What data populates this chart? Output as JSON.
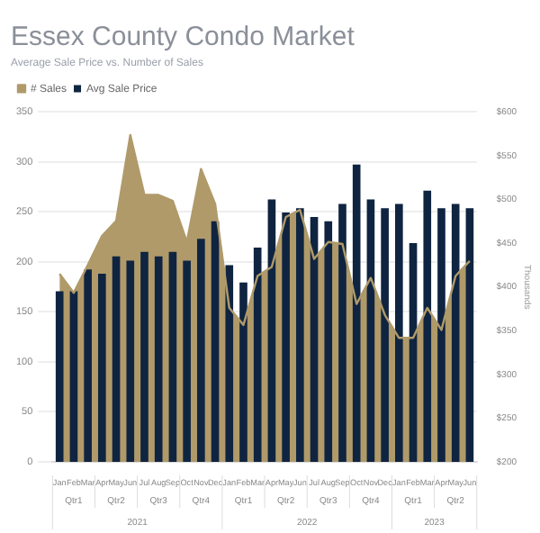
{
  "chart_data": {
    "type": "bar",
    "title": "Essex County Condo Market",
    "subtitle": "Average Sale Price vs. Number of Sales",
    "y2label": "Thousands",
    "categories": [
      "Jan",
      "Feb",
      "Mar",
      "Apr",
      "May",
      "Jun",
      "Jul",
      "Aug",
      "Sep",
      "Oct",
      "Nov",
      "Dec",
      "Jan",
      "Feb",
      "Mar",
      "Apr",
      "May",
      "Jun",
      "Jul",
      "Aug",
      "Sep",
      "Oct",
      "Nov",
      "Dec",
      "Jan",
      "Feb",
      "Mar",
      "Apr",
      "May",
      "Jun"
    ],
    "series": [
      {
        "name": "# Sales",
        "type": "area",
        "color": "#b09a6a",
        "values": [
          188,
          169,
          197,
          226,
          241,
          327,
          267,
          267,
          261,
          220,
          293,
          258,
          154,
          137,
          186,
          195,
          245,
          252,
          203,
          220,
          218,
          158,
          184,
          147,
          124,
          124,
          154,
          132,
          186,
          201
        ]
      },
      {
        "name": "Avg Sale Price",
        "axis": "y2",
        "color": "#0f2440",
        "values": [
          395,
          395,
          420,
          415,
          435,
          430,
          440,
          435,
          440,
          430,
          455,
          475,
          425,
          405,
          445,
          500,
          485,
          490,
          480,
          475,
          495,
          540,
          500,
          490,
          495,
          450,
          510,
          490,
          495,
          490
        ]
      }
    ],
    "ylim": [
      0,
      350
    ],
    "yticks": [
      0,
      50,
      100,
      150,
      200,
      250,
      300,
      350
    ],
    "y2lim": [
      200,
      600
    ],
    "y2ticks": [
      {
        "value": 200,
        "label": "$200"
      },
      {
        "value": 250,
        "label": "$250"
      },
      {
        "value": 300,
        "label": "$300"
      },
      {
        "value": 350,
        "label": "$350"
      },
      {
        "value": 400,
        "label": "$400"
      },
      {
        "value": 450,
        "label": "$450"
      },
      {
        "value": 500,
        "label": "$500"
      },
      {
        "value": 550,
        "label": "$550"
      },
      {
        "value": 600,
        "label": "$600"
      }
    ],
    "grid": "y",
    "legend": "top left",
    "marker": "none",
    "annotations": [
      "Qtr1",
      "Qtr2",
      "Qtr3",
      "Qtr4",
      "Qtr1",
      "Qtr2",
      "Qtr3",
      "Qtr4",
      "Qtr1",
      "Qtr2",
      "2021",
      "2022",
      "2023"
    ]
  }
}
